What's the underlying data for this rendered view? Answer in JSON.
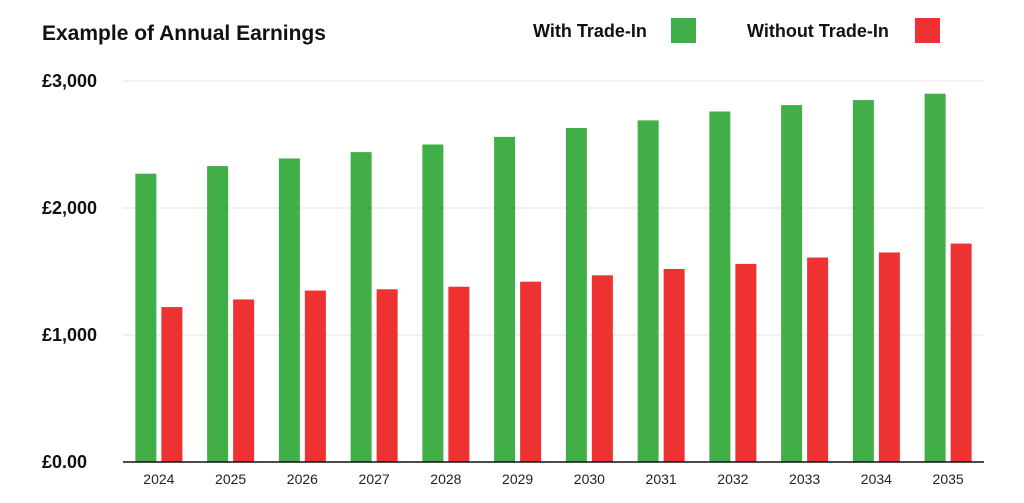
{
  "chart_data": {
    "type": "bar",
    "title": "Example of Annual Earnings",
    "xlabel": "",
    "ylabel": "",
    "categories": [
      "2024",
      "2025",
      "2026",
      "2027",
      "2028",
      "2029",
      "2030",
      "2031",
      "2032",
      "2033",
      "2034",
      "2035"
    ],
    "series": [
      {
        "name": "With Trade-In",
        "color": "#41ae48",
        "values": [
          2270,
          2330,
          2390,
          2440,
          2500,
          2560,
          2630,
          2690,
          2760,
          2810,
          2850,
          2900
        ]
      },
      {
        "name": "Without Trade-In",
        "color": "#ee3131",
        "values": [
          1220,
          1280,
          1350,
          1360,
          1380,
          1420,
          1470,
          1520,
          1560,
          1610,
          1650,
          1720
        ]
      }
    ],
    "ylim": [
      0,
      3000
    ],
    "yticks": [
      {
        "value": 0,
        "label": "£0.00"
      },
      {
        "value": 1000,
        "label": "£1,000"
      },
      {
        "value": 2000,
        "label": "£2,000"
      },
      {
        "value": 3000,
        "label": "£3,000"
      }
    ],
    "grid": true,
    "legend_position": "top-right"
  }
}
